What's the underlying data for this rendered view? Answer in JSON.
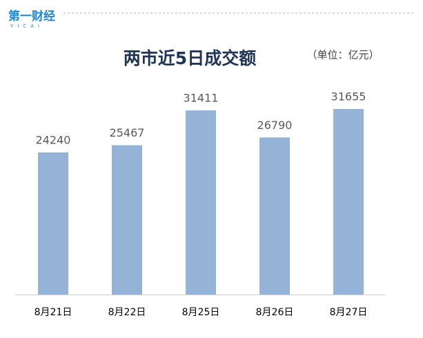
{
  "logo": {
    "text": "第一财经",
    "sub": "YICAI"
  },
  "chart_data": {
    "type": "bar",
    "title": "两市近5日成交额",
    "subtitle": "（单位：亿元）",
    "categories": [
      "8月21日",
      "8月22日",
      "8月25日",
      "8月26日",
      "8月27日"
    ],
    "values": [
      24240,
      25467,
      31411,
      26790,
      31655
    ],
    "color": "#95b3d7"
  }
}
